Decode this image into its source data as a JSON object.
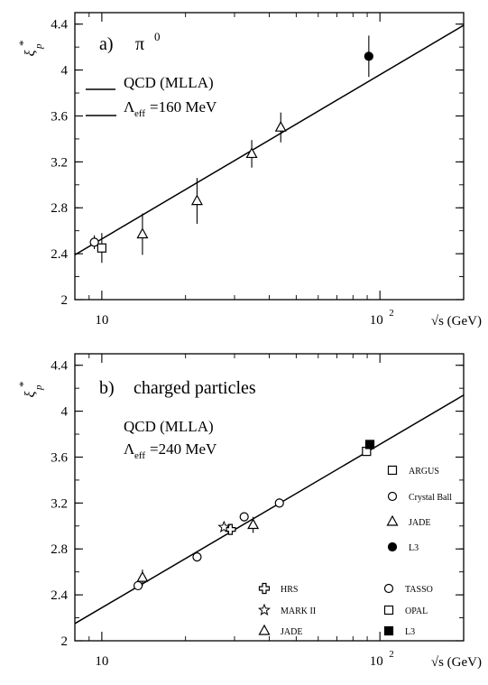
{
  "chart_data": [
    {
      "type": "scatter",
      "panel_label": "a)",
      "title": "π",
      "title_superscript": "0",
      "xlabel": "√s (GeV)",
      "ylabel": "ξ",
      "ylabel_sub": "p",
      "ylabel_sup": "*",
      "xscale": "log",
      "xlim": [
        8,
        200
      ],
      "ylim": [
        2,
        4.5
      ],
      "xticks": [
        {
          "value": 10,
          "label": "10"
        },
        {
          "value": 100,
          "label": "10",
          "sup": "2"
        }
      ],
      "yticks": [
        2,
        2.4,
        2.8,
        3.2,
        3.6,
        4,
        4.4
      ],
      "ytick_labels": [
        "2",
        "2.4",
        "2.8",
        "3.2",
        "3.6",
        "4",
        "4.4"
      ],
      "fit": {
        "label": "QCD (MLLA)",
        "param_symbol": "Λ",
        "param_sub": "eff",
        "param_text": "=160 MeV",
        "x": [
          8,
          200
        ],
        "y": [
          2.39,
          4.39
        ]
      },
      "legend_position": "bottom-right",
      "series": [
        {
          "name": "ARGUS",
          "marker": "square",
          "fill": "open",
          "points": [
            {
              "x": 10.0,
              "y": 2.45,
              "err": 0.13
            }
          ]
        },
        {
          "name": "Crystal Ball",
          "marker": "circle",
          "fill": "open",
          "points": [
            {
              "x": 9.4,
              "y": 2.5,
              "err": 0.06
            }
          ]
        },
        {
          "name": "JADE",
          "marker": "triangle",
          "fill": "open",
          "points": [
            {
              "x": 14,
              "y": 2.57,
              "err": 0.18
            },
            {
              "x": 22,
              "y": 2.86,
              "err": 0.2
            },
            {
              "x": 34.6,
              "y": 3.27,
              "err": 0.12
            },
            {
              "x": 44,
              "y": 3.5,
              "err": 0.13
            }
          ]
        },
        {
          "name": "L3",
          "marker": "circle",
          "fill": "filled",
          "points": [
            {
              "x": 91.2,
              "y": 4.12,
              "err": 0.18
            }
          ]
        }
      ]
    },
    {
      "type": "scatter",
      "panel_label": "b)",
      "title": "charged particles",
      "xlabel": "√s (GeV)",
      "ylabel": "ξ",
      "ylabel_sub": "p",
      "ylabel_sup": "*",
      "xscale": "log",
      "xlim": [
        8,
        200
      ],
      "ylim": [
        2,
        4.5
      ],
      "xticks": [
        {
          "value": 10,
          "label": "10"
        },
        {
          "value": 100,
          "label": "10",
          "sup": "2"
        }
      ],
      "yticks": [
        2,
        2.4,
        2.8,
        3.2,
        3.6,
        4,
        4.4
      ],
      "ytick_labels": [
        "2",
        "2.4",
        "2.8",
        "3.2",
        "3.6",
        "4",
        "4.4"
      ],
      "fit": {
        "label": "QCD (MLLA)",
        "param_symbol": "Λ",
        "param_sub": "eff",
        "param_text": "=240 MeV",
        "x": [
          8,
          200
        ],
        "y": [
          2.15,
          4.14
        ]
      },
      "legend_position": "bottom-right",
      "series": [
        {
          "name": "HRS",
          "marker": "cross",
          "fill": "open",
          "points": [
            {
              "x": 29,
              "y": 2.97,
              "err": 0.02
            }
          ]
        },
        {
          "name": "MARK II",
          "marker": "star",
          "fill": "open",
          "points": [
            {
              "x": 27.5,
              "y": 2.99,
              "err": 0.02
            }
          ]
        },
        {
          "name": "JADE",
          "marker": "triangle",
          "fill": "open",
          "points": [
            {
              "x": 14,
              "y": 2.55,
              "err": 0.07
            },
            {
              "x": 35,
              "y": 3.01,
              "err": 0.07
            }
          ]
        },
        {
          "name": "TASSO",
          "marker": "circle",
          "fill": "open",
          "points": [
            {
              "x": 13.5,
              "y": 2.48,
              "err": 0.02
            },
            {
              "x": 22,
              "y": 2.73,
              "err": 0.03
            },
            {
              "x": 32.5,
              "y": 3.08,
              "err": 0.04
            },
            {
              "x": 43.5,
              "y": 3.2,
              "err": 0.04
            }
          ]
        },
        {
          "name": "OPAL",
          "marker": "square",
          "fill": "open",
          "points": [
            {
              "x": 89.5,
              "y": 3.65,
              "err": 0.03
            }
          ]
        },
        {
          "name": "L3",
          "marker": "square",
          "fill": "filled",
          "points": [
            {
              "x": 92,
              "y": 3.71,
              "err": 0.04
            }
          ]
        }
      ]
    }
  ]
}
